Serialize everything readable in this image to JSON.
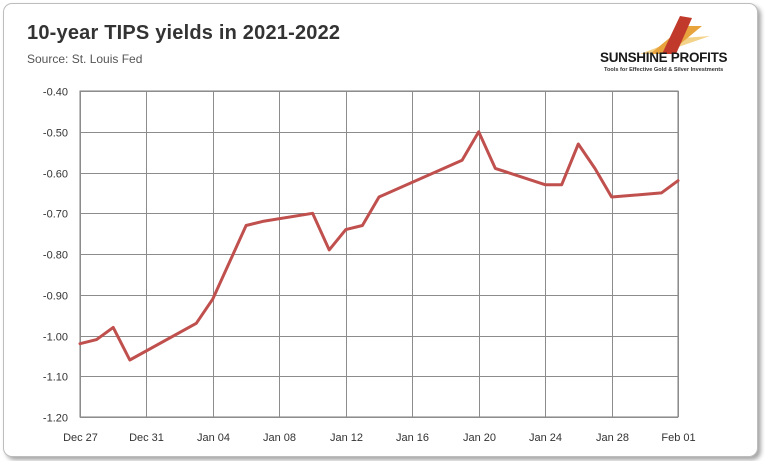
{
  "header": {
    "title": "10-year TIPS yields in 2021-2022",
    "subtitle": "Source: St. Louis Fed"
  },
  "logo": {
    "name": "SUNSHINE PROFITS",
    "tagline": "Tools for Effective Gold & Silver Investments",
    "colors": [
      "#c0392b",
      "#e8a33d",
      "#f3d28a"
    ]
  },
  "chart_data": {
    "type": "line",
    "title": "10-year TIPS yields in 2021-2022",
    "subtitle": "Source: St. Louis Fed",
    "xlabel": "",
    "ylabel": "",
    "ylim": [
      -1.2,
      -0.4
    ],
    "yticks": [
      "-0.40",
      "-0.50",
      "-0.60",
      "-0.70",
      "-0.80",
      "-0.90",
      "-1.00",
      "-1.10",
      "-1.20"
    ],
    "xlim": [
      "2021-12-27",
      "2022-02-01"
    ],
    "xticks": [
      {
        "date": "2021-12-27",
        "label": "Dec 27"
      },
      {
        "date": "2021-12-31",
        "label": "Dec 31"
      },
      {
        "date": "2022-01-04",
        "label": "Jan 04"
      },
      {
        "date": "2022-01-08",
        "label": "Jan 08"
      },
      {
        "date": "2022-01-12",
        "label": "Jan 12"
      },
      {
        "date": "2022-01-16",
        "label": "Jan 16"
      },
      {
        "date": "2022-01-20",
        "label": "Jan 20"
      },
      {
        "date": "2022-01-24",
        "label": "Jan 24"
      },
      {
        "date": "2022-01-28",
        "label": "Jan 28"
      },
      {
        "date": "2022-02-01",
        "label": "Feb 01"
      }
    ],
    "grid": true,
    "series": [
      {
        "color": "#c0504d",
        "points": [
          {
            "x": "2021-12-27",
            "y": -1.02
          },
          {
            "x": "2021-12-28",
            "y": -1.01
          },
          {
            "x": "2021-12-29",
            "y": -0.98
          },
          {
            "x": "2021-12-30",
            "y": -1.06
          },
          {
            "x": "2022-01-03",
            "y": -0.97
          },
          {
            "x": "2022-01-04",
            "y": -0.91
          },
          {
            "x": "2022-01-06",
            "y": -0.73
          },
          {
            "x": "2022-01-07",
            "y": -0.72
          },
          {
            "x": "2022-01-10",
            "y": -0.7
          },
          {
            "x": "2022-01-11",
            "y": -0.79
          },
          {
            "x": "2022-01-12",
            "y": -0.74
          },
          {
            "x": "2022-01-13",
            "y": -0.73
          },
          {
            "x": "2022-01-14",
            "y": -0.66
          },
          {
            "x": "2022-01-19",
            "y": -0.57
          },
          {
            "x": "2022-01-20",
            "y": -0.5
          },
          {
            "x": "2022-01-21",
            "y": -0.59
          },
          {
            "x": "2022-01-24",
            "y": -0.63
          },
          {
            "x": "2022-01-25",
            "y": -0.63
          },
          {
            "x": "2022-01-26",
            "y": -0.53
          },
          {
            "x": "2022-01-27",
            "y": -0.59
          },
          {
            "x": "2022-01-28",
            "y": -0.66
          },
          {
            "x": "2022-01-31",
            "y": -0.65
          },
          {
            "x": "2022-02-01",
            "y": -0.62
          }
        ]
      }
    ]
  }
}
